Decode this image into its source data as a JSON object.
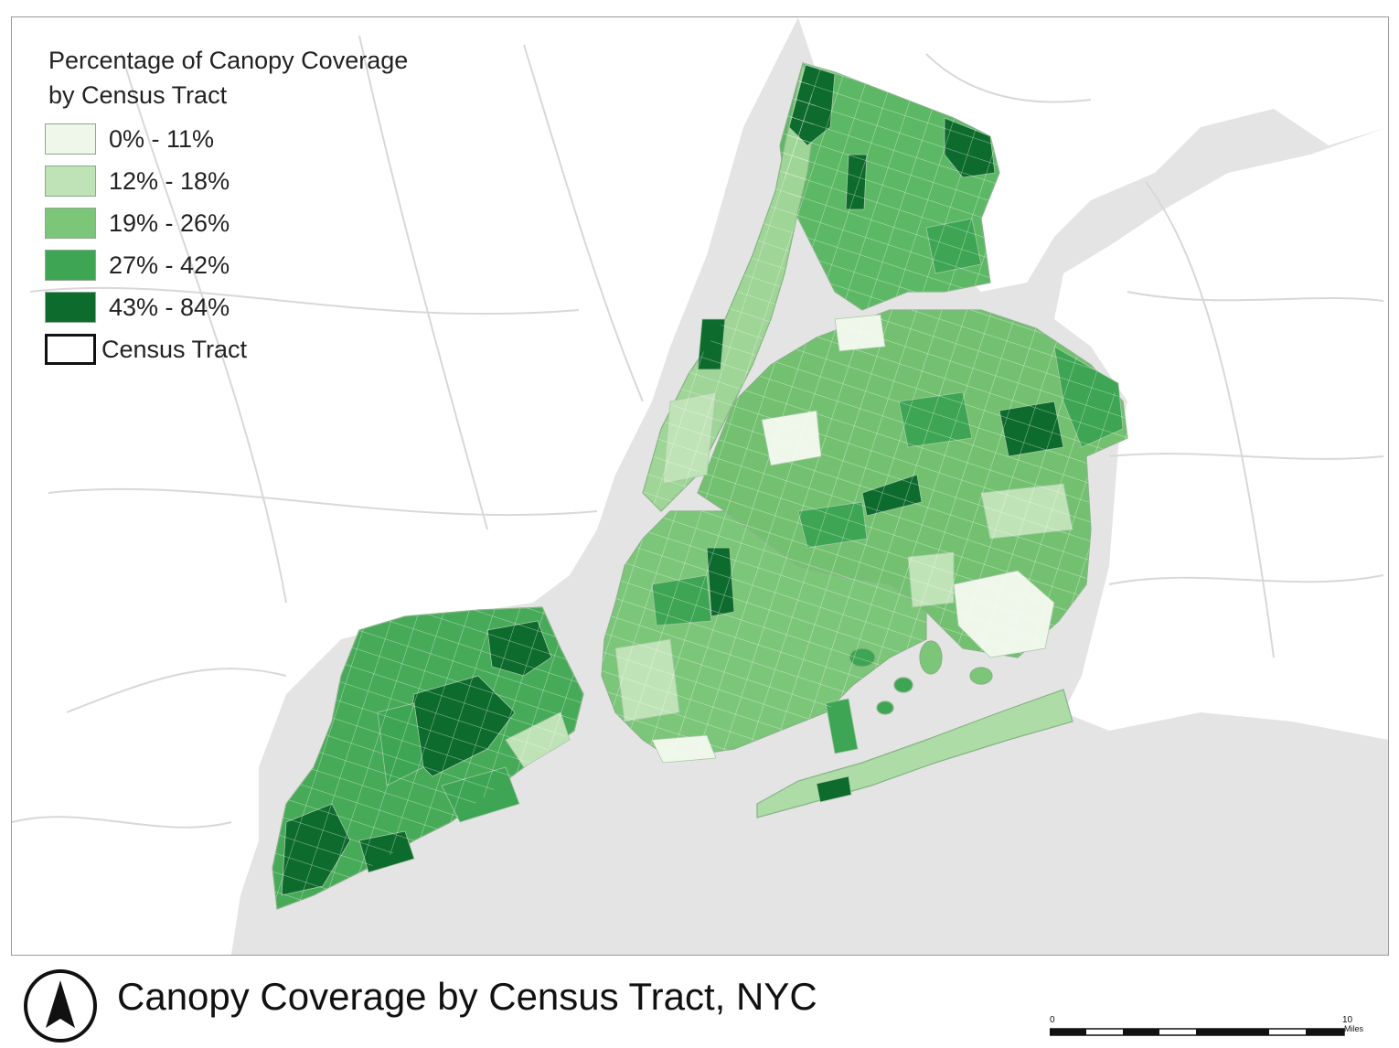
{
  "map": {
    "title": "Canopy Coverage by Census Tract, NYC",
    "legend": {
      "title_line1": "Percentage of Canopy Coverage",
      "title_line2": "by Census Tract",
      "classes": [
        {
          "label": "0% - 11%",
          "color": "#eef7ea"
        },
        {
          "label": "12% - 18%",
          "color": "#bfe3b7"
        },
        {
          "label": "19% - 26%",
          "color": "#7cc67a"
        },
        {
          "label": "27% - 42%",
          "color": "#3da553"
        },
        {
          "label": "43% - 84%",
          "color": "#0e6b2e"
        }
      ],
      "tract_label": "Census Tract"
    },
    "scale_bar": {
      "start_label": "0",
      "end_label": "10",
      "unit": "Miles"
    },
    "colors": {
      "water": "#e4e4e4",
      "land": "#ffffff",
      "roads": "#cfcfcf",
      "tract_border": "#9ab89a"
    },
    "north_arrow_icon": "north-arrow-icon"
  }
}
